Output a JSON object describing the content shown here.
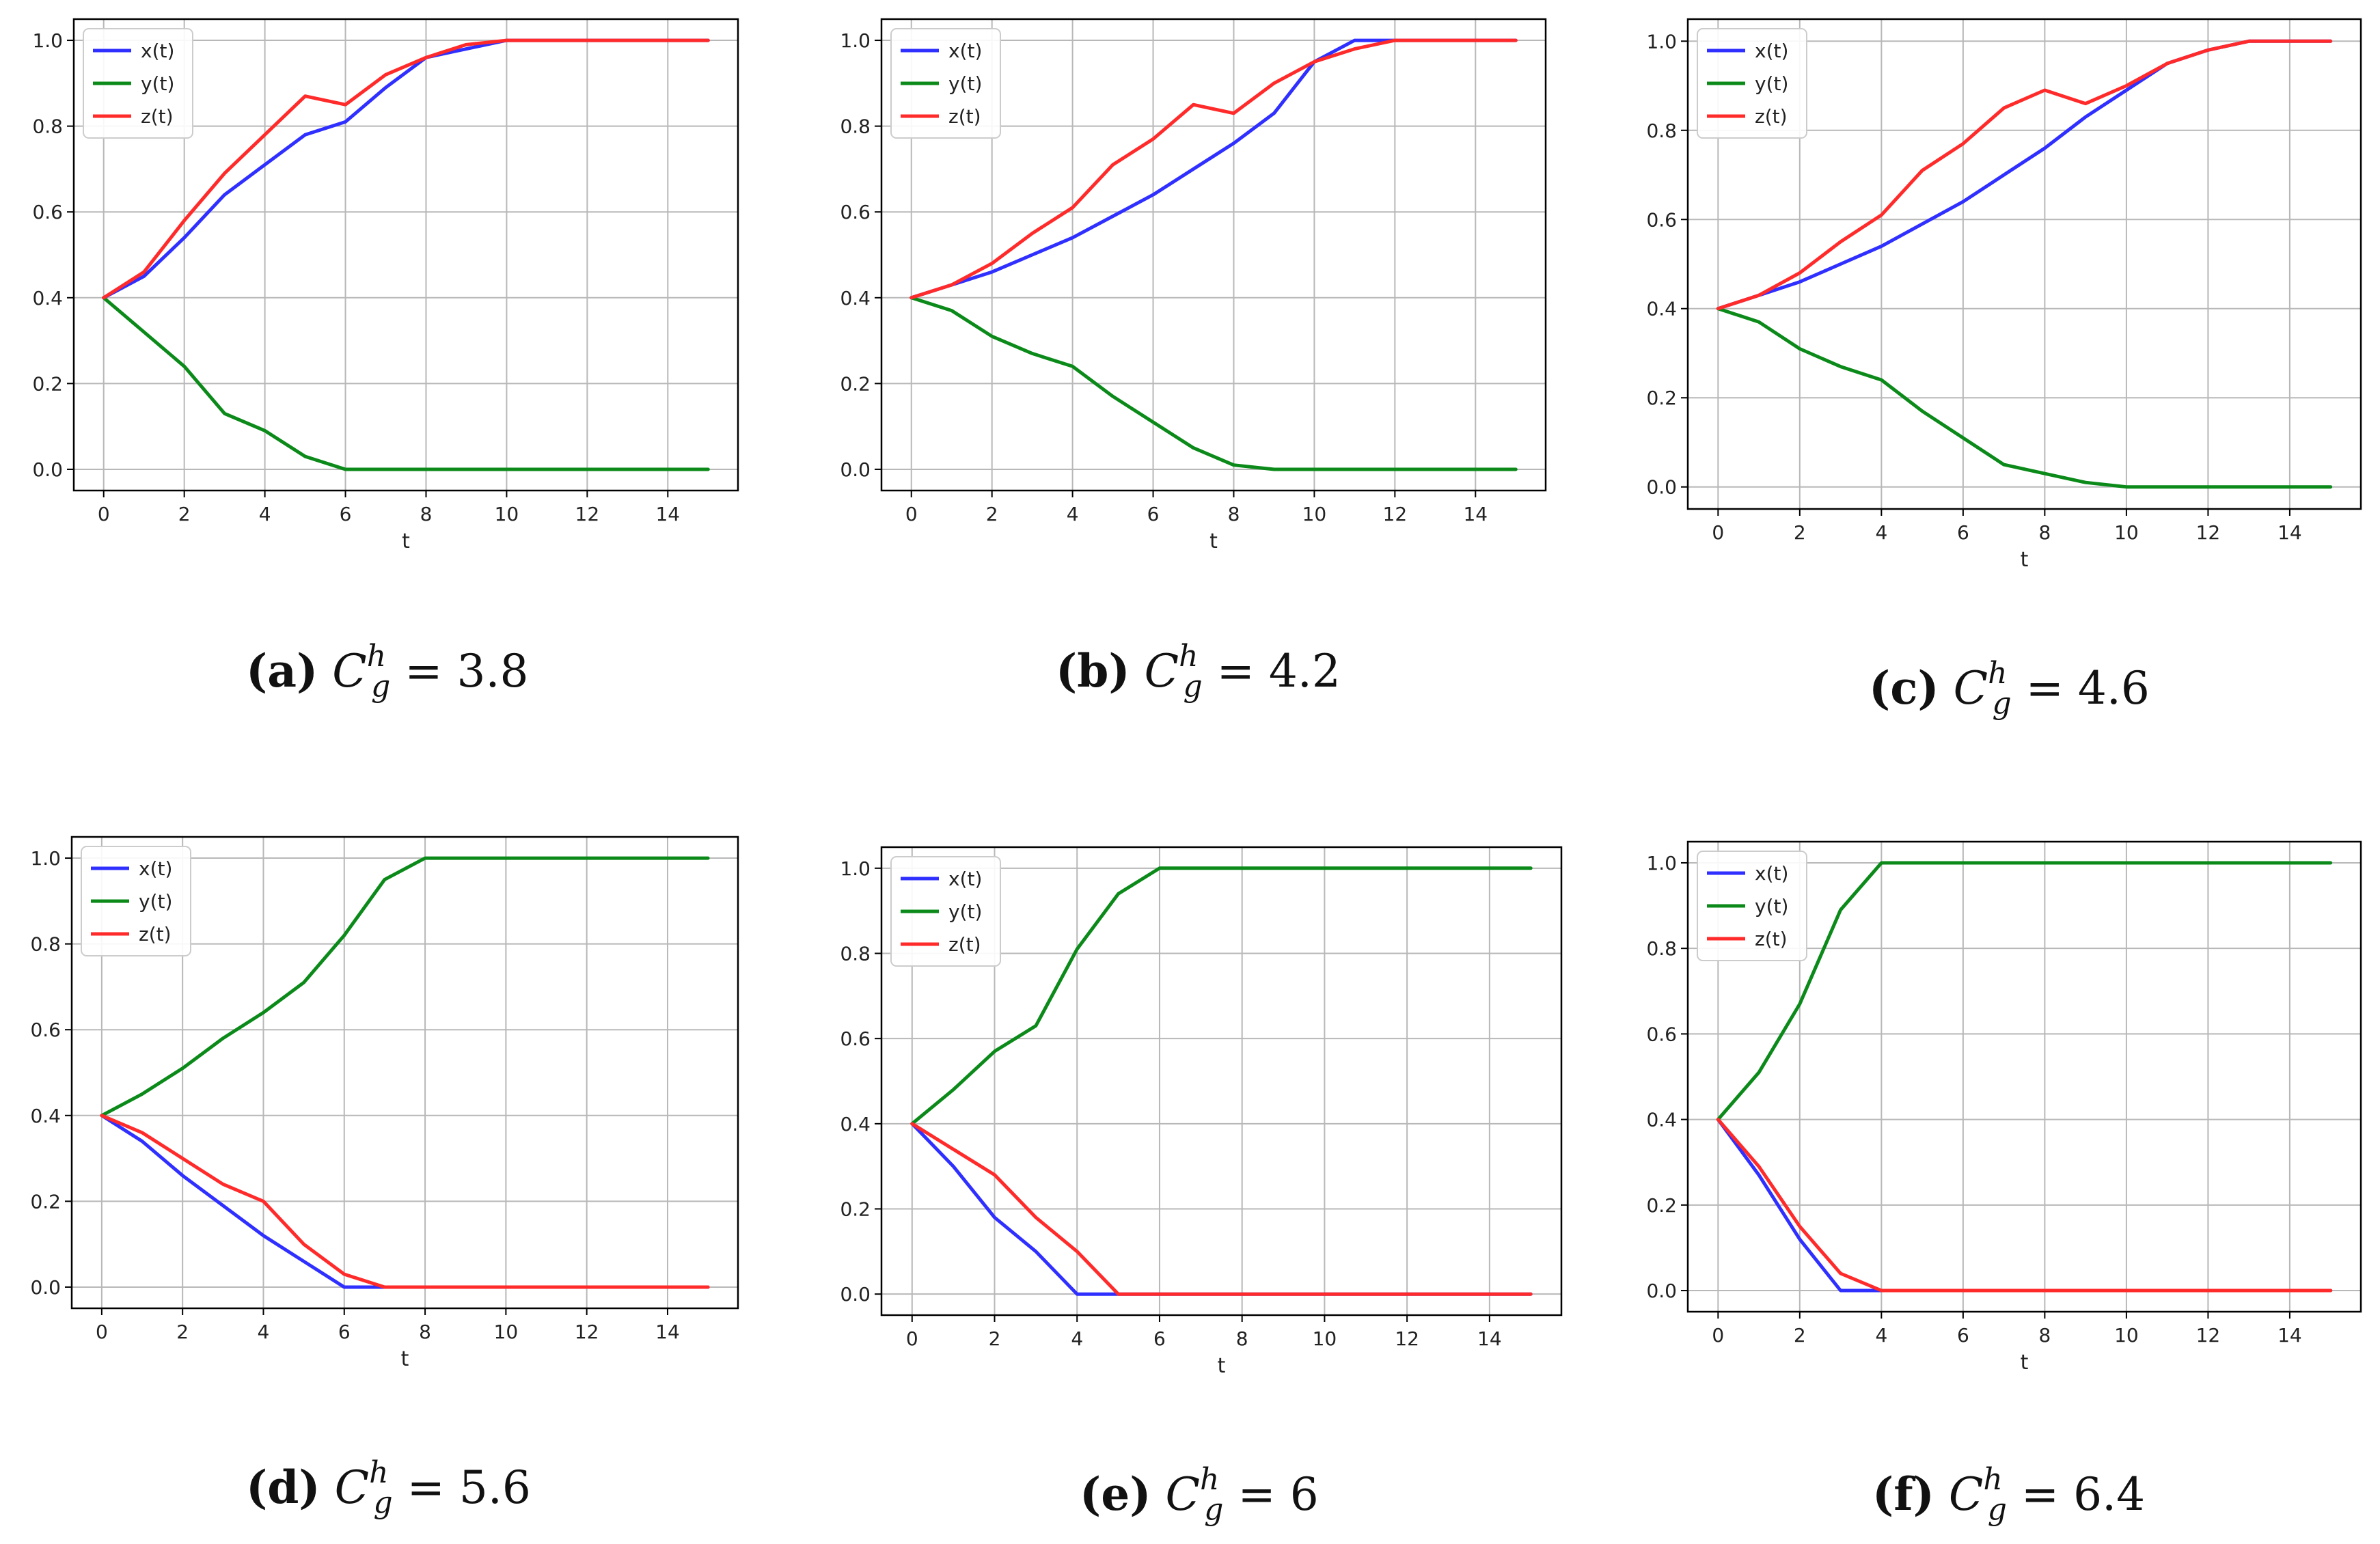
{
  "figure": {
    "xlabel": "t",
    "legend": [
      "x(t)",
      "y(t)",
      "z(t)"
    ],
    "colors": {
      "x": "#2f2fff",
      "y": "#0b8a1a",
      "z": "#ff2b2b",
      "grid": "#b8b8b8",
      "axis": "#000000"
    }
  },
  "captions": [
    {
      "label": "(a)",
      "symbol": "C",
      "sup": "h",
      "sub": "g",
      "eq": "= 3.8"
    },
    {
      "label": "(b)",
      "symbol": "C",
      "sup": "h",
      "sub": "g",
      "eq": "= 4.2"
    },
    {
      "label": "(c)",
      "symbol": "C",
      "sup": "h",
      "sub": "g",
      "eq": "= 4.6"
    },
    {
      "label": "(d)",
      "symbol": "C",
      "sup": "h",
      "sub": "g",
      "eq": "= 5.6"
    },
    {
      "label": "(e)",
      "symbol": "C",
      "sup": "h",
      "sub": "g",
      "eq": "= 6"
    },
    {
      "label": "(f)",
      "symbol": "C",
      "sup": "h",
      "sub": "g",
      "eq": "= 6.4"
    }
  ],
  "chart_data": [
    {
      "type": "line",
      "panel": "a",
      "xlabel": "t",
      "xlim": [
        0,
        15
      ],
      "ylim": [
        0,
        1
      ],
      "x": [
        0,
        1,
        2,
        3,
        4,
        5,
        6,
        7,
        8,
        9,
        10,
        11,
        12,
        13,
        14,
        15
      ],
      "series": [
        {
          "name": "x(t)",
          "values": [
            0.4,
            0.45,
            0.54,
            0.64,
            0.71,
            0.78,
            0.81,
            0.89,
            0.96,
            0.98,
            1.0,
            1.0,
            1.0,
            1.0,
            1.0,
            1.0
          ]
        },
        {
          "name": "y(t)",
          "values": [
            0.4,
            0.32,
            0.24,
            0.13,
            0.09,
            0.03,
            0.0,
            0.0,
            0.0,
            0.0,
            0.0,
            0.0,
            0.0,
            0.0,
            0.0,
            0.0
          ]
        },
        {
          "name": "z(t)",
          "values": [
            0.4,
            0.46,
            0.58,
            0.69,
            0.78,
            0.87,
            0.85,
            0.92,
            0.96,
            0.99,
            1.0,
            1.0,
            1.0,
            1.0,
            1.0,
            1.0
          ]
        }
      ]
    },
    {
      "type": "line",
      "panel": "b",
      "xlabel": "t",
      "xlim": [
        0,
        15
      ],
      "ylim": [
        0,
        1
      ],
      "x": [
        0,
        1,
        2,
        3,
        4,
        5,
        6,
        7,
        8,
        9,
        10,
        11,
        12,
        13,
        14,
        15
      ],
      "series": [
        {
          "name": "x(t)",
          "values": [
            0.4,
            0.43,
            0.46,
            0.5,
            0.54,
            0.59,
            0.64,
            0.7,
            0.76,
            0.83,
            0.95,
            1.0,
            1.0,
            1.0,
            1.0,
            1.0
          ]
        },
        {
          "name": "y(t)",
          "values": [
            0.4,
            0.37,
            0.31,
            0.27,
            0.24,
            0.17,
            0.11,
            0.05,
            0.01,
            0.0,
            0.0,
            0.0,
            0.0,
            0.0,
            0.0,
            0.0
          ]
        },
        {
          "name": "z(t)",
          "values": [
            0.4,
            0.43,
            0.48,
            0.55,
            0.61,
            0.71,
            0.77,
            0.85,
            0.83,
            0.9,
            0.95,
            0.98,
            1.0,
            1.0,
            1.0,
            1.0
          ]
        }
      ]
    },
    {
      "type": "line",
      "panel": "c",
      "xlabel": "t",
      "xlim": [
        0,
        15
      ],
      "ylim": [
        0,
        1
      ],
      "x": [
        0,
        1,
        2,
        3,
        4,
        5,
        6,
        7,
        8,
        9,
        10,
        11,
        12,
        13,
        14,
        15
      ],
      "series": [
        {
          "name": "x(t)",
          "values": [
            0.4,
            0.43,
            0.46,
            0.5,
            0.54,
            0.59,
            0.64,
            0.7,
            0.76,
            0.83,
            0.89,
            0.95,
            0.98,
            1.0,
            1.0,
            1.0
          ]
        },
        {
          "name": "y(t)",
          "values": [
            0.4,
            0.37,
            0.31,
            0.27,
            0.24,
            0.17,
            0.11,
            0.05,
            0.03,
            0.01,
            0.0,
            0.0,
            0.0,
            0.0,
            0.0,
            0.0
          ]
        },
        {
          "name": "z(t)",
          "values": [
            0.4,
            0.43,
            0.48,
            0.55,
            0.61,
            0.71,
            0.77,
            0.85,
            0.89,
            0.86,
            0.9,
            0.95,
            0.98,
            1.0,
            1.0,
            1.0
          ]
        }
      ]
    },
    {
      "type": "line",
      "panel": "d",
      "xlabel": "t",
      "xlim": [
        0,
        15
      ],
      "ylim": [
        0,
        1
      ],
      "x": [
        0,
        1,
        2,
        3,
        4,
        5,
        6,
        7,
        8,
        9,
        10,
        11,
        12,
        13,
        14,
        15
      ],
      "series": [
        {
          "name": "x(t)",
          "values": [
            0.4,
            0.34,
            0.26,
            0.19,
            0.12,
            0.06,
            0.0,
            0.0,
            0.0,
            0.0,
            0.0,
            0.0,
            0.0,
            0.0,
            0.0,
            0.0
          ]
        },
        {
          "name": "y(t)",
          "values": [
            0.4,
            0.45,
            0.51,
            0.58,
            0.64,
            0.71,
            0.82,
            0.95,
            1.0,
            1.0,
            1.0,
            1.0,
            1.0,
            1.0,
            1.0,
            1.0
          ]
        },
        {
          "name": "z(t)",
          "values": [
            0.4,
            0.36,
            0.3,
            0.24,
            0.2,
            0.1,
            0.03,
            0.0,
            0.0,
            0.0,
            0.0,
            0.0,
            0.0,
            0.0,
            0.0,
            0.0
          ]
        }
      ]
    },
    {
      "type": "line",
      "panel": "e",
      "xlabel": "t",
      "xlim": [
        0,
        15
      ],
      "ylim": [
        0,
        1
      ],
      "x": [
        0,
        1,
        2,
        3,
        4,
        5,
        6,
        7,
        8,
        9,
        10,
        11,
        12,
        13,
        14,
        15
      ],
      "series": [
        {
          "name": "x(t)",
          "values": [
            0.4,
            0.3,
            0.18,
            0.1,
            0.0,
            0.0,
            0.0,
            0.0,
            0.0,
            0.0,
            0.0,
            0.0,
            0.0,
            0.0,
            0.0,
            0.0
          ]
        },
        {
          "name": "y(t)",
          "values": [
            0.4,
            0.48,
            0.57,
            0.63,
            0.81,
            0.94,
            1.0,
            1.0,
            1.0,
            1.0,
            1.0,
            1.0,
            1.0,
            1.0,
            1.0,
            1.0
          ]
        },
        {
          "name": "z(t)",
          "values": [
            0.4,
            0.34,
            0.28,
            0.18,
            0.1,
            0.0,
            0.0,
            0.0,
            0.0,
            0.0,
            0.0,
            0.0,
            0.0,
            0.0,
            0.0,
            0.0
          ]
        }
      ]
    },
    {
      "type": "line",
      "panel": "f",
      "xlabel": "t",
      "xlim": [
        0,
        15
      ],
      "ylim": [
        0,
        1
      ],
      "x": [
        0,
        1,
        2,
        3,
        4,
        5,
        6,
        7,
        8,
        9,
        10,
        11,
        12,
        13,
        14,
        15
      ],
      "series": [
        {
          "name": "x(t)",
          "values": [
            0.4,
            0.27,
            0.12,
            0.0,
            0.0,
            0.0,
            0.0,
            0.0,
            0.0,
            0.0,
            0.0,
            0.0,
            0.0,
            0.0,
            0.0,
            0.0
          ]
        },
        {
          "name": "y(t)",
          "values": [
            0.4,
            0.51,
            0.67,
            0.89,
            1.0,
            1.0,
            1.0,
            1.0,
            1.0,
            1.0,
            1.0,
            1.0,
            1.0,
            1.0,
            1.0,
            1.0
          ]
        },
        {
          "name": "z(t)",
          "values": [
            0.4,
            0.29,
            0.15,
            0.04,
            0.0,
            0.0,
            0.0,
            0.0,
            0.0,
            0.0,
            0.0,
            0.0,
            0.0,
            0.0,
            0.0,
            0.0
          ]
        }
      ]
    }
  ]
}
